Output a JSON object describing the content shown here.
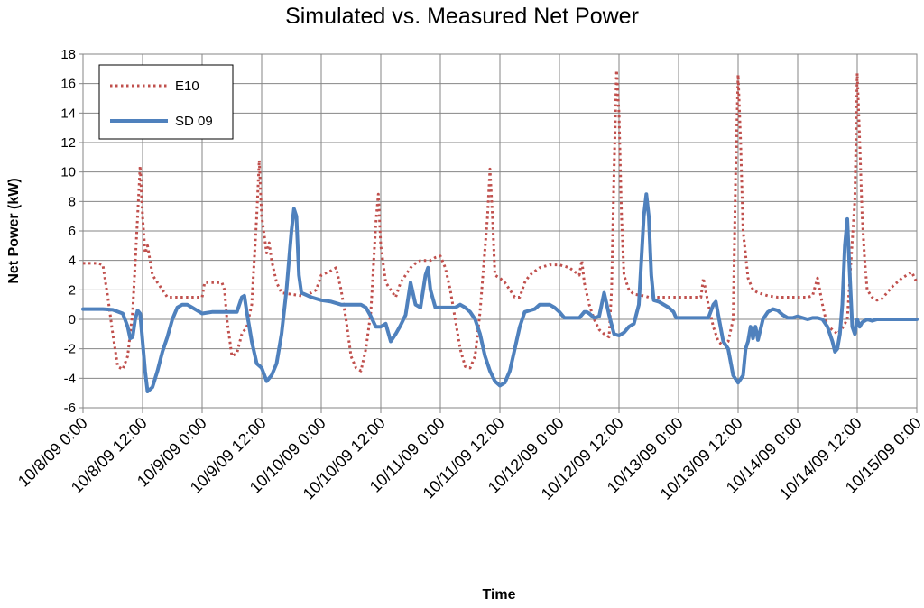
{
  "chart_data": {
    "type": "line",
    "title": "Simulated vs. Measured Net Power",
    "xlabel": "Time",
    "ylabel": "Net Power (kW)",
    "ylim": [
      -6,
      18
    ],
    "yticks": [
      -6,
      -4,
      -2,
      0,
      2,
      4,
      6,
      8,
      10,
      12,
      14,
      16,
      18
    ],
    "xlim": [
      0,
      168
    ],
    "x_units": "hours since 10/8/09 0:00",
    "xtick_labels": [
      "10/8/09 0:00",
      "10/8/09 12:00",
      "10/9/09 0:00",
      "10/9/09 12:00",
      "10/10/09 0:00",
      "10/10/09 12:00",
      "10/11/09 0:00",
      "10/11/09 12:00",
      "10/12/09 0:00",
      "10/12/09 12:00",
      "10/13/09 0:00",
      "10/13/09 12:00",
      "10/14/09 0:00",
      "10/14/09 12:00",
      "10/15/09 0:00"
    ],
    "grid": true,
    "legend_position": "top-left",
    "series": [
      {
        "name": "E10",
        "color": "#c0504d",
        "style": "dotted",
        "points": [
          [
            0,
            3.8
          ],
          [
            3,
            3.8
          ],
          [
            4,
            3.7
          ],
          [
            5,
            1.5
          ],
          [
            6,
            -1
          ],
          [
            7,
            -3.2
          ],
          [
            8,
            -3.4
          ],
          [
            9,
            -2.5
          ],
          [
            10,
            0.5
          ],
          [
            11,
            7
          ],
          [
            11.5,
            10.4
          ],
          [
            12,
            7
          ],
          [
            12.5,
            4.5
          ],
          [
            13,
            5
          ],
          [
            14,
            3
          ],
          [
            15,
            2.5
          ],
          [
            16,
            2
          ],
          [
            17,
            1.5
          ],
          [
            18,
            1.5
          ],
          [
            21,
            1.5
          ],
          [
            24,
            1.5
          ],
          [
            24.5,
            2.5
          ],
          [
            26,
            2.5
          ],
          [
            28,
            2.5
          ],
          [
            28.5,
            2
          ],
          [
            29,
            0
          ],
          [
            30,
            -2.5
          ],
          [
            31,
            -2.3
          ],
          [
            32,
            -1
          ],
          [
            33,
            -0.5
          ],
          [
            34,
            1
          ],
          [
            35,
            7
          ],
          [
            35.5,
            10.8
          ],
          [
            36,
            7
          ],
          [
            37,
            4.5
          ],
          [
            37.5,
            5.2
          ],
          [
            38,
            4
          ],
          [
            39,
            2.5
          ],
          [
            40,
            1.8
          ],
          [
            42,
            1.7
          ],
          [
            44,
            1.6
          ],
          [
            46,
            1.8
          ],
          [
            47,
            2
          ],
          [
            48,
            3
          ],
          [
            50,
            3.3
          ],
          [
            51,
            3.5
          ],
          [
            52,
            2
          ],
          [
            53,
            0
          ],
          [
            54,
            -2.5
          ],
          [
            55,
            -3.3
          ],
          [
            56,
            -3.5
          ],
          [
            57,
            -2
          ],
          [
            58,
            0.5
          ],
          [
            59,
            6.5
          ],
          [
            59.5,
            8.5
          ],
          [
            60,
            5
          ],
          [
            61,
            2.5
          ],
          [
            62,
            2
          ],
          [
            63,
            1.5
          ],
          [
            64,
            2.5
          ],
          [
            65,
            3
          ],
          [
            66,
            3.5
          ],
          [
            67,
            3.8
          ],
          [
            68,
            4
          ],
          [
            70,
            4
          ],
          [
            71,
            4.2
          ],
          [
            72,
            4.3
          ],
          [
            73,
            3.5
          ],
          [
            74,
            2
          ],
          [
            75,
            0
          ],
          [
            76,
            -2
          ],
          [
            77,
            -3.2
          ],
          [
            78,
            -3.3
          ],
          [
            79,
            -2.5
          ],
          [
            80,
            0.5
          ],
          [
            81.5,
            7
          ],
          [
            82,
            10.2
          ],
          [
            82.5,
            7
          ],
          [
            83,
            3
          ],
          [
            84,
            2.8
          ],
          [
            85,
            2.5
          ],
          [
            86,
            2
          ],
          [
            87,
            1.5
          ],
          [
            88,
            1.5
          ],
          [
            89,
            2.5
          ],
          [
            90,
            3
          ],
          [
            92,
            3.5
          ],
          [
            94,
            3.7
          ],
          [
            96,
            3.7
          ],
          [
            98,
            3.5
          ],
          [
            100,
            3
          ],
          [
            100.5,
            4
          ],
          [
            101,
            2.5
          ],
          [
            102,
            1
          ],
          [
            103,
            0
          ],
          [
            104,
            -0.7
          ],
          [
            105,
            -1
          ],
          [
            106,
            -1.2
          ],
          [
            106.5,
            2
          ],
          [
            107,
            10
          ],
          [
            107.5,
            16.9
          ],
          [
            108,
            14
          ],
          [
            108.5,
            7
          ],
          [
            109,
            3
          ],
          [
            110,
            2
          ],
          [
            111,
            1.7
          ],
          [
            113,
            1.6
          ],
          [
            114,
            1.5
          ],
          [
            116,
            1.5
          ],
          [
            118,
            1.5
          ],
          [
            120,
            1.5
          ],
          [
            121,
            1.5
          ],
          [
            123,
            1.5
          ],
          [
            124.5,
            1.5
          ],
          [
            125,
            2.8
          ],
          [
            126,
            1
          ],
          [
            127,
            -0.5
          ],
          [
            128,
            -1.5
          ],
          [
            129,
            -1.8
          ],
          [
            130,
            -1.5
          ],
          [
            131,
            0
          ],
          [
            131.5,
            10
          ],
          [
            132,
            16.6
          ],
          [
            132.5,
            12
          ],
          [
            133,
            6
          ],
          [
            134,
            2.8
          ],
          [
            135,
            2
          ],
          [
            136,
            1.8
          ],
          [
            138,
            1.6
          ],
          [
            140,
            1.5
          ],
          [
            142,
            1.5
          ],
          [
            144,
            1.5
          ],
          [
            146,
            1.5
          ],
          [
            147,
            1.6
          ],
          [
            148,
            2.8
          ],
          [
            149,
            1
          ],
          [
            150,
            -0.5
          ],
          [
            151,
            -0.7
          ],
          [
            152,
            -1
          ],
          [
            153,
            -0.6
          ],
          [
            154,
            0
          ],
          [
            155.5,
            8
          ],
          [
            156,
            16.7
          ],
          [
            156.5,
            12
          ],
          [
            157,
            7
          ],
          [
            157.5,
            4
          ],
          [
            158,
            2
          ],
          [
            159,
            1.5
          ],
          [
            160,
            1.3
          ],
          [
            161,
            1.4
          ],
          [
            162,
            1.8
          ],
          [
            163,
            2.2
          ],
          [
            164,
            2.5
          ],
          [
            165,
            2.8
          ],
          [
            166,
            3
          ],
          [
            167,
            3.2
          ],
          [
            168,
            2.5
          ]
        ]
      },
      {
        "name": "SD 09",
        "color": "#4f81bd",
        "style": "solid",
        "points": [
          [
            0,
            0.7
          ],
          [
            4,
            0.7
          ],
          [
            6,
            0.65
          ],
          [
            8,
            0.4
          ],
          [
            9,
            -0.5
          ],
          [
            9.5,
            -1.3
          ],
          [
            10,
            -1.2
          ],
          [
            10.5,
            0
          ],
          [
            11,
            0.6
          ],
          [
            11.5,
            0.4
          ],
          [
            12,
            -1.5
          ],
          [
            12.5,
            -3.5
          ],
          [
            13,
            -4.9
          ],
          [
            14,
            -4.6
          ],
          [
            15,
            -3.5
          ],
          [
            16,
            -2.2
          ],
          [
            17,
            -1.2
          ],
          [
            18,
            0
          ],
          [
            19,
            0.8
          ],
          [
            20,
            1
          ],
          [
            21,
            1
          ],
          [
            22,
            0.8
          ],
          [
            23,
            0.6
          ],
          [
            24,
            0.4
          ],
          [
            26,
            0.5
          ],
          [
            28,
            0.5
          ],
          [
            30,
            0.5
          ],
          [
            31,
            0.5
          ],
          [
            32,
            1.5
          ],
          [
            32.5,
            1.6
          ],
          [
            33,
            0.5
          ],
          [
            34,
            -1.5
          ],
          [
            35,
            -3
          ],
          [
            36,
            -3.3
          ],
          [
            37,
            -4.2
          ],
          [
            38,
            -3.8
          ],
          [
            39,
            -3
          ],
          [
            40,
            -1
          ],
          [
            41,
            2
          ],
          [
            42,
            6
          ],
          [
            42.5,
            7.5
          ],
          [
            43,
            7
          ],
          [
            43.5,
            3
          ],
          [
            44,
            1.8
          ],
          [
            46,
            1.5
          ],
          [
            48,
            1.3
          ],
          [
            50,
            1.2
          ],
          [
            52,
            1
          ],
          [
            54,
            1
          ],
          [
            56,
            1
          ],
          [
            57,
            0.8
          ],
          [
            58,
            0.2
          ],
          [
            59,
            -0.5
          ],
          [
            60,
            -0.5
          ],
          [
            61,
            -0.3
          ],
          [
            62,
            -1.5
          ],
          [
            63,
            -1
          ],
          [
            64,
            -0.4
          ],
          [
            65,
            0.3
          ],
          [
            66,
            2.5
          ],
          [
            67,
            1
          ],
          [
            68,
            0.8
          ],
          [
            69,
            3
          ],
          [
            69.5,
            3.5
          ],
          [
            70,
            2
          ],
          [
            71,
            0.8
          ],
          [
            73,
            0.8
          ],
          [
            75,
            0.8
          ],
          [
            76,
            1
          ],
          [
            77,
            0.8
          ],
          [
            78,
            0.5
          ],
          [
            79,
            0
          ],
          [
            80,
            -1
          ],
          [
            81,
            -2.5
          ],
          [
            82,
            -3.5
          ],
          [
            83,
            -4.2
          ],
          [
            84,
            -4.5
          ],
          [
            85,
            -4.3
          ],
          [
            86,
            -3.5
          ],
          [
            87,
            -2
          ],
          [
            88,
            -0.5
          ],
          [
            89,
            0.5
          ],
          [
            90,
            0.6
          ],
          [
            91,
            0.7
          ],
          [
            92,
            1
          ],
          [
            93,
            1
          ],
          [
            94,
            1
          ],
          [
            95,
            0.8
          ],
          [
            96,
            0.5
          ],
          [
            97,
            0.1
          ],
          [
            98,
            0.1
          ],
          [
            100,
            0.1
          ],
          [
            101,
            0.5
          ],
          [
            101.5,
            0.5
          ],
          [
            102,
            0.4
          ],
          [
            103,
            0.1
          ],
          [
            104,
            0.2
          ],
          [
            105,
            1.8
          ],
          [
            106,
            0.3
          ],
          [
            107,
            -1
          ],
          [
            108,
            -1.1
          ],
          [
            109,
            -0.9
          ],
          [
            110,
            -0.5
          ],
          [
            111,
            -0.3
          ],
          [
            112,
            1
          ],
          [
            113,
            7
          ],
          [
            113.5,
            8.5
          ],
          [
            114,
            7
          ],
          [
            114.5,
            3
          ],
          [
            115,
            1.3
          ],
          [
            116,
            1.2
          ],
          [
            118,
            0.8
          ],
          [
            119,
            0.5
          ],
          [
            119.5,
            0.1
          ],
          [
            120,
            0.1
          ],
          [
            122,
            0.1
          ],
          [
            124,
            0.1
          ],
          [
            126,
            0.1
          ],
          [
            127,
            1
          ],
          [
            127.5,
            1.2
          ],
          [
            128,
            0.3
          ],
          [
            129,
            -1.5
          ],
          [
            130,
            -2
          ],
          [
            131,
            -3.8
          ],
          [
            132,
            -4.3
          ],
          [
            133,
            -3.8
          ],
          [
            133.5,
            -2
          ],
          [
            134,
            -1.5
          ],
          [
            134.5,
            -0.5
          ],
          [
            135,
            -1.3
          ],
          [
            135.5,
            -0.5
          ],
          [
            136,
            -1.4
          ],
          [
            137,
            0
          ],
          [
            138,
            0.5
          ],
          [
            139,
            0.7
          ],
          [
            140,
            0.6
          ],
          [
            141,
            0.3
          ],
          [
            142,
            0.1
          ],
          [
            143,
            0.1
          ],
          [
            144,
            0.2
          ],
          [
            145,
            0.1
          ],
          [
            146,
            0
          ],
          [
            147,
            0.1
          ],
          [
            148,
            0.1
          ],
          [
            149,
            0
          ],
          [
            150,
            -0.5
          ],
          [
            151,
            -1.5
          ],
          [
            151.5,
            -2.2
          ],
          [
            152,
            -2
          ],
          [
            152.5,
            -1
          ],
          [
            153,
            1
          ],
          [
            153.5,
            5
          ],
          [
            154,
            6.8
          ],
          [
            154.5,
            3
          ],
          [
            155,
            -0.5
          ],
          [
            155.5,
            -1
          ],
          [
            156,
            0
          ],
          [
            156.5,
            -0.5
          ],
          [
            157,
            -0.2
          ],
          [
            158,
            0
          ],
          [
            159,
            -0.1
          ],
          [
            160,
            0
          ],
          [
            164,
            0
          ],
          [
            168,
            0
          ]
        ]
      }
    ]
  }
}
